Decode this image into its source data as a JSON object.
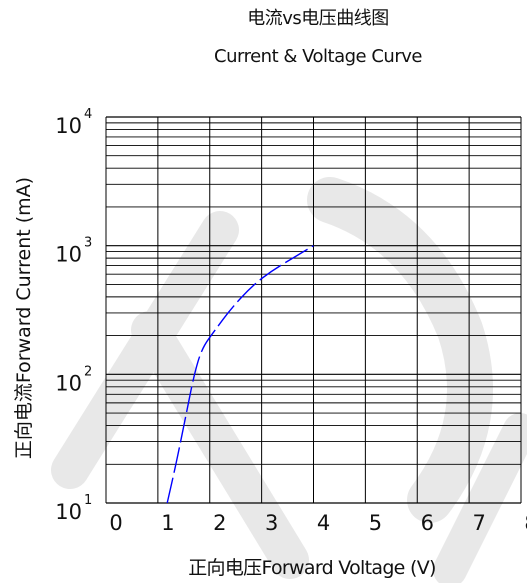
{
  "chart_data": {
    "type": "line",
    "title": "电流vs电压曲线图",
    "subtitle": "Current & Voltage Curve",
    "xlabel": "正向电压Forward Voltage (V)",
    "ylabel": "正向电流Forward Current (mA)",
    "xlim": [
      0,
      8
    ],
    "ylim": [
      10,
      10000
    ],
    "yscale": "log",
    "grid": true,
    "x_ticks": [
      "0",
      "1",
      "2",
      "3",
      "4",
      "5",
      "6",
      "7",
      "8"
    ],
    "y_ticks": [
      {
        "base": "10",
        "exp": "1",
        "value": 10
      },
      {
        "base": "10",
        "exp": "2",
        "value": 100
      },
      {
        "base": "10",
        "exp": "3",
        "value": 1000
      },
      {
        "base": "10",
        "exp": "4",
        "value": 10000
      }
    ],
    "series": [
      {
        "color": "#0000ff",
        "points": [
          [
            1.18,
            10
          ],
          [
            1.35,
            20
          ],
          [
            1.55,
            50
          ],
          [
            1.7,
            100
          ],
          [
            1.85,
            160
          ],
          [
            2.1,
            220
          ],
          [
            2.4,
            320
          ],
          [
            2.8,
            480
          ],
          [
            3.2,
            640
          ],
          [
            3.6,
            800
          ],
          [
            4.0,
            1000
          ]
        ]
      }
    ],
    "watermark_color": "#d9d9d9"
  }
}
